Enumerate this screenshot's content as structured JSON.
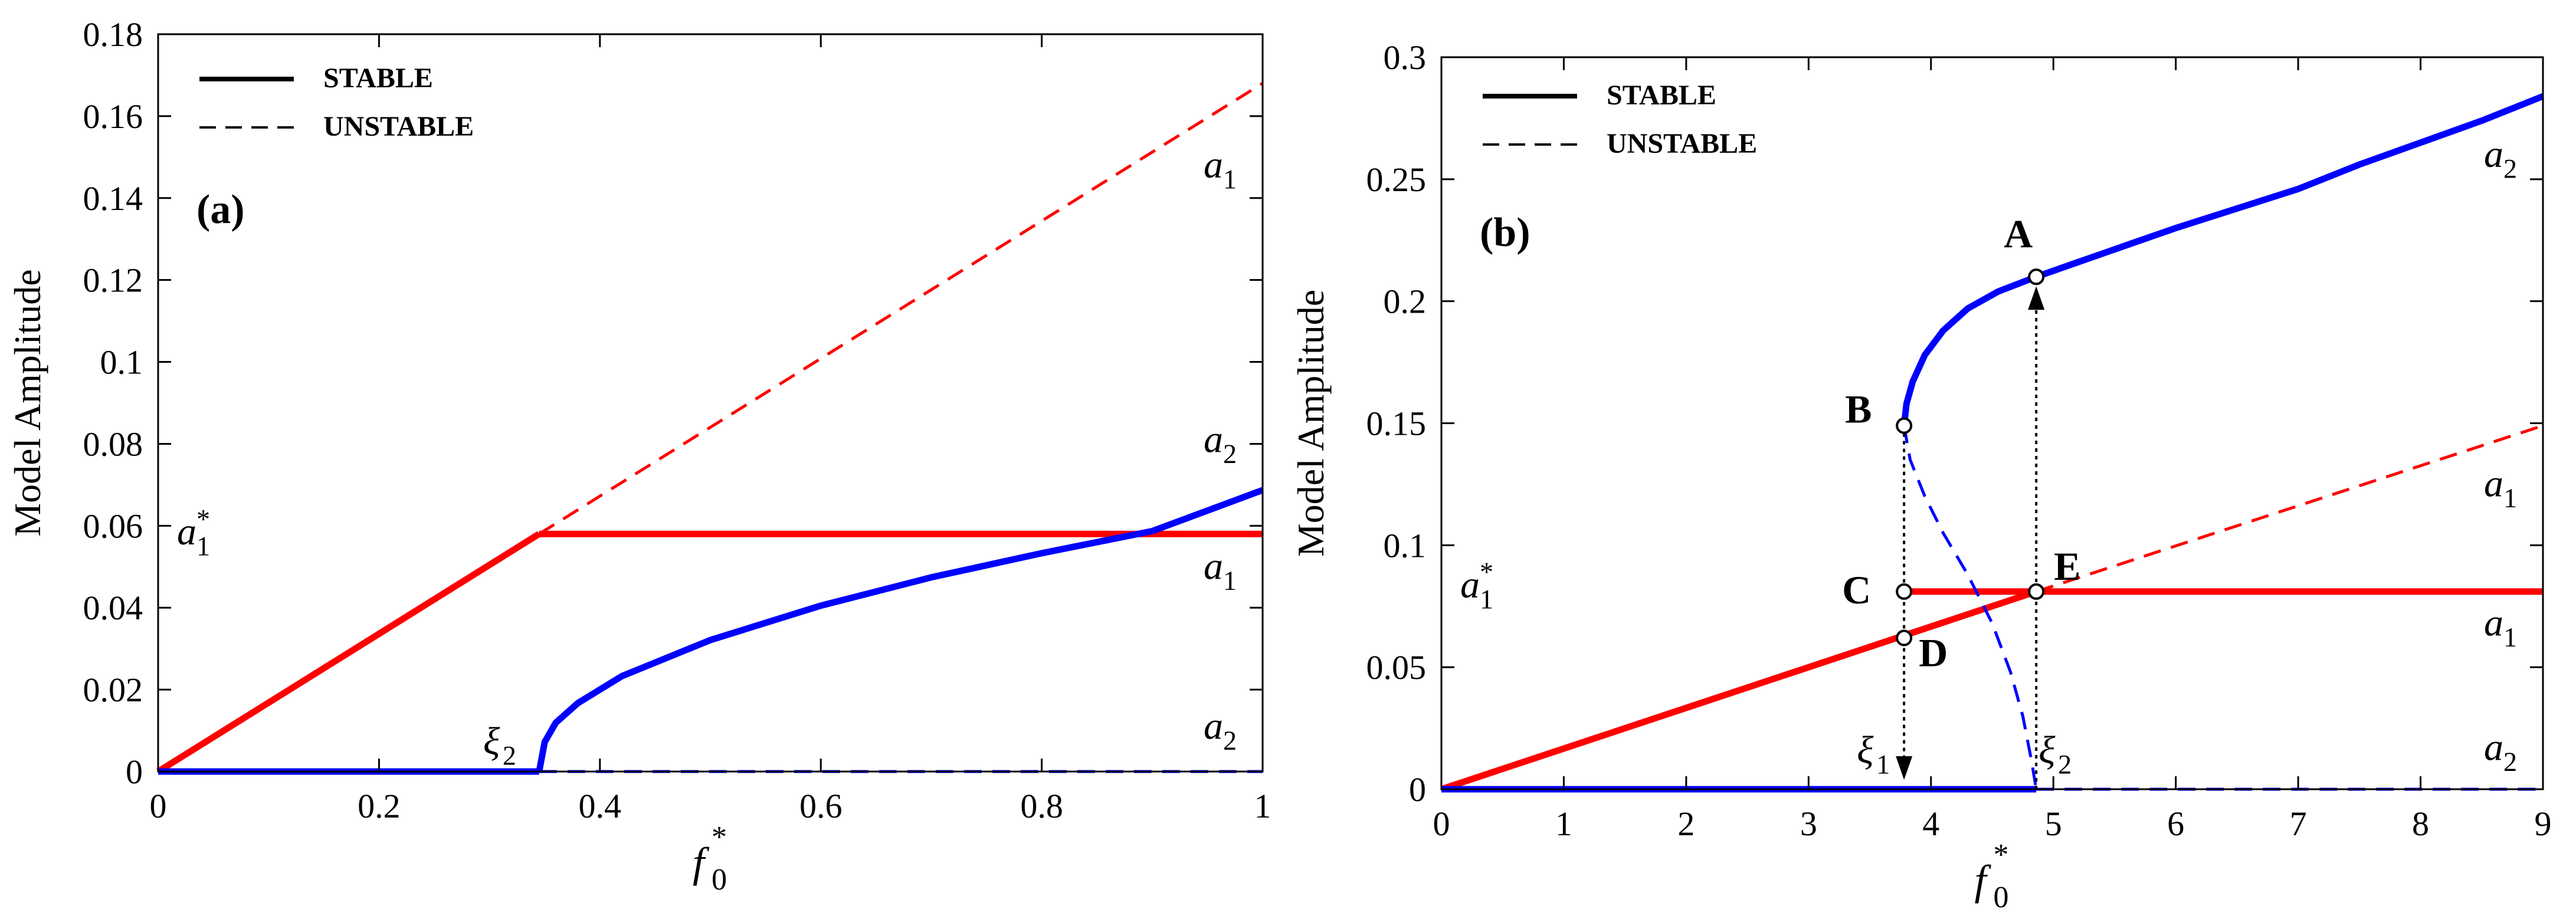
{
  "colors": {
    "a1": "#ff0000",
    "a2": "#0000ff",
    "axis": "#000000"
  },
  "chart_data": [
    {
      "type": "line",
      "panel_label": "(a)",
      "ylabel": "Model Amplitude",
      "xlabel_main": "f",
      "xlabel_sub": "0",
      "xlabel_sup": "*",
      "xlim": [
        0,
        1
      ],
      "ylim": [
        0,
        0.18
      ],
      "xticks": [
        0,
        0.2,
        0.4,
        0.6,
        0.8,
        1
      ],
      "xtick_labels": [
        "0",
        "0.2",
        "0.4",
        "0.6",
        "0.8",
        "1"
      ],
      "yticks": [
        0,
        0.02,
        0.04,
        0.06,
        0.08,
        0.1,
        0.12,
        0.14,
        0.16,
        0.18
      ],
      "ytick_labels": [
        "0",
        "0.02",
        "0.04",
        "0.06",
        "0.08",
        "0.1",
        "0.12",
        "0.14",
        "0.16",
        "0.18"
      ],
      "legend": {
        "stable": "STABLE",
        "unstable": "UNSTABLE",
        "position": "top-left"
      },
      "series": [
        {
          "name": "a1 stable (linear)",
          "curve": "a1",
          "style": "solid",
          "x": [
            0,
            0.345
          ],
          "y": [
            0,
            0.058
          ]
        },
        {
          "name": "a1 stable (saturated)",
          "curve": "a1",
          "style": "solid",
          "x": [
            0.345,
            1
          ],
          "y": [
            0.058,
            0.058
          ]
        },
        {
          "name": "a1 unstable",
          "curve": "a1",
          "style": "dashed",
          "x": [
            0.345,
            1
          ],
          "y": [
            0.058,
            0.168
          ]
        },
        {
          "name": "a2 stable (zero)",
          "curve": "a2",
          "style": "solid",
          "x": [
            0,
            0.345
          ],
          "y": [
            0,
            0
          ]
        },
        {
          "name": "a2 stable (branch)",
          "curve": "a2",
          "style": "solid",
          "x": [
            0.345,
            0.35,
            0.36,
            0.38,
            0.42,
            0.5,
            0.6,
            0.7,
            0.8,
            0.9,
            1.0
          ],
          "y": [
            0,
            0.0072,
            0.0119,
            0.0167,
            0.0233,
            0.0321,
            0.0405,
            0.0474,
            0.0533,
            0.0587,
            0.0687
          ]
        },
        {
          "name": "a2 unstable (zero)",
          "curve": "a2",
          "style": "dashed",
          "x": [
            0.345,
            1
          ],
          "y": [
            0,
            0
          ]
        }
      ],
      "annotations": [
        {
          "id": "a1-star",
          "text": "a",
          "sub": "1",
          "sup": "*"
        },
        {
          "id": "xi2",
          "text": "ξ",
          "sub": "2",
          "sup": ""
        },
        {
          "id": "a1-top",
          "text": "a",
          "sub": "1",
          "sup": ""
        },
        {
          "id": "a2-mid",
          "text": "a",
          "sub": "2",
          "sup": ""
        },
        {
          "id": "a1-mid",
          "text": "a",
          "sub": "1",
          "sup": ""
        },
        {
          "id": "a2-bottom",
          "text": "a",
          "sub": "2",
          "sup": ""
        }
      ]
    },
    {
      "type": "line",
      "panel_label": "(b)",
      "ylabel": "Model Amplitude",
      "xlabel_main": "f",
      "xlabel_sub": "0",
      "xlabel_sup": "*",
      "xlim": [
        0,
        9
      ],
      "ylim": [
        0,
        0.3
      ],
      "xticks": [
        0,
        1,
        2,
        3,
        4,
        5,
        6,
        7,
        8,
        9
      ],
      "xtick_labels": [
        "0",
        "1",
        "2",
        "3",
        "4",
        "5",
        "6",
        "7",
        "8",
        "9"
      ],
      "yticks": [
        0,
        0.05,
        0.1,
        0.15,
        0.2,
        0.25,
        0.3
      ],
      "ytick_labels": [
        "0",
        "0.05",
        "0.1",
        "0.15",
        "0.2",
        "0.25",
        "0.3"
      ],
      "legend": {
        "stable": "STABLE",
        "unstable": "UNSTABLE",
        "position": "top-left"
      },
      "series": [
        {
          "name": "a1 stable (linear)",
          "curve": "a1",
          "style": "solid",
          "x": [
            0,
            4.86
          ],
          "y": [
            0,
            0.081
          ]
        },
        {
          "name": "a1 stable (saturated)",
          "curve": "a1",
          "style": "solid",
          "x": [
            3.78,
            9
          ],
          "y": [
            0.081,
            0.081
          ]
        },
        {
          "name": "a1 unstable",
          "curve": "a1",
          "style": "dashed",
          "x": [
            4.86,
            9
          ],
          "y": [
            0.081,
            0.149
          ]
        },
        {
          "name": "a2 stable (zero)",
          "curve": "a2",
          "style": "solid",
          "x": [
            0,
            4.86
          ],
          "y": [
            0,
            0
          ]
        },
        {
          "name": "a2 unstable (zero)",
          "curve": "a2",
          "style": "dashed",
          "x": [
            4.86,
            9
          ],
          "y": [
            0,
            0
          ]
        },
        {
          "name": "a2 stable (upper branch)",
          "curve": "a2",
          "style": "solid",
          "x": [
            3.78,
            3.8,
            3.85,
            3.95,
            4.1,
            4.3,
            4.55,
            4.86,
            5.2,
            5.6,
            6.0,
            6.5,
            7.0,
            7.5,
            8.0,
            8.5,
            9.0
          ],
          "y": [
            0.149,
            0.158,
            0.167,
            0.178,
            0.188,
            0.197,
            0.204,
            0.21,
            0.216,
            0.223,
            0.23,
            0.238,
            0.246,
            0.256,
            0.265,
            0.274,
            0.284
          ]
        },
        {
          "name": "a2 unstable (lower branch)",
          "curve": "a2",
          "style": "dashed",
          "x": [
            3.78,
            3.83,
            3.95,
            4.1,
            4.3,
            4.5,
            4.65,
            4.75,
            4.82,
            4.86
          ],
          "y": [
            0.149,
            0.135,
            0.12,
            0.105,
            0.088,
            0.068,
            0.048,
            0.03,
            0.012,
            0
          ]
        }
      ],
      "points": [
        {
          "label": "A",
          "x": 4.86,
          "y": 0.21
        },
        {
          "label": "B",
          "x": 3.78,
          "y": 0.149
        },
        {
          "label": "C",
          "x": 3.78,
          "y": 0.081
        },
        {
          "label": "D",
          "x": 3.78,
          "y": 0.062
        },
        {
          "label": "E",
          "x": 4.86,
          "y": 0.081
        }
      ],
      "arrows": [
        {
          "name": "jump-up",
          "x": 4.86,
          "y_from": 0,
          "y_to": 0.21
        },
        {
          "name": "jump-down",
          "x": 3.78,
          "y_from": 0.149,
          "y_to": 0
        }
      ],
      "annotations": [
        {
          "id": "a1-star",
          "text": "a",
          "sub": "1",
          "sup": "*"
        },
        {
          "id": "xi1",
          "text": "ξ",
          "sub": "1",
          "sup": ""
        },
        {
          "id": "xi2",
          "text": "ξ",
          "sub": "2",
          "sup": ""
        },
        {
          "id": "a2-top",
          "text": "a",
          "sub": "2",
          "sup": ""
        },
        {
          "id": "a1-upper",
          "text": "a",
          "sub": "1",
          "sup": ""
        },
        {
          "id": "a1-lower",
          "text": "a",
          "sub": "1",
          "sup": ""
        },
        {
          "id": "a2-bottom",
          "text": "a",
          "sub": "2",
          "sup": ""
        }
      ]
    }
  ]
}
